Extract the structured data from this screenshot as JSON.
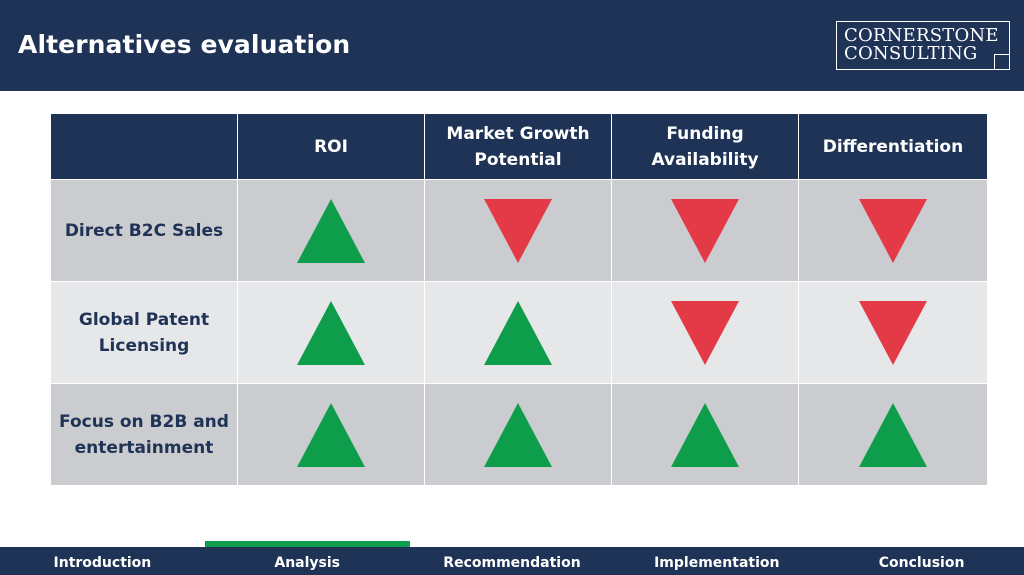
{
  "header": {
    "title": "Alternatives evaluation",
    "logo": {
      "line1": "CORNERSTONE",
      "line2": "CONSULTING"
    }
  },
  "table": {
    "columns": [
      "",
      "ROI",
      "Market Growth Potential",
      "Funding Availability",
      "Differentiation"
    ],
    "rows": [
      {
        "label": "Direct B2C Sales",
        "ratings": [
          "up",
          "down",
          "down",
          "down"
        ]
      },
      {
        "label": "Global Patent Licensing",
        "ratings": [
          "up",
          "up",
          "down",
          "down"
        ]
      },
      {
        "label": "Focus on B2B and entertainment",
        "ratings": [
          "up",
          "up",
          "up",
          "up"
        ]
      }
    ]
  },
  "nav": {
    "items": [
      "Introduction",
      "Analysis",
      "Recommendation",
      "Implementation",
      "Conclusion"
    ],
    "active_index": 1
  },
  "colors": {
    "navy": "#1e3356",
    "up_green": "#0e9e4b",
    "down_red": "#e43a48",
    "row_dark": "#cbcccf",
    "row_light": "#e6e7e9"
  }
}
